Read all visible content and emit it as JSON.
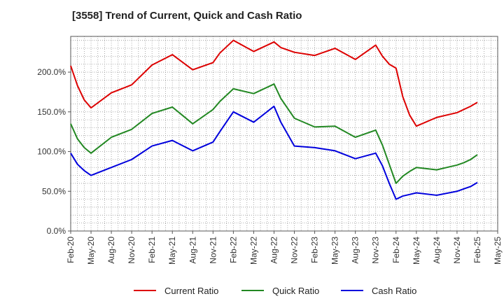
{
  "chart_data": {
    "type": "line",
    "title": "[3558]  Trend of Current, Quick and Cash Ratio",
    "xlabel": "",
    "ylabel": "",
    "ylim": [
      0,
      245
    ],
    "y_ticks": [
      0,
      50,
      100,
      150,
      200
    ],
    "y_tick_labels": [
      "0.0%",
      "50.0%",
      "100.0%",
      "150.0%",
      "200.0%"
    ],
    "grid": true,
    "legend_position": "bottom",
    "x_tick_labels": [
      "Feb-20",
      "May-20",
      "Aug-20",
      "Nov-20",
      "Feb-21",
      "May-21",
      "Aug-21",
      "Nov-21",
      "Feb-22",
      "May-22",
      "Aug-22",
      "Nov-22",
      "Feb-23",
      "May-23",
      "Aug-23",
      "Nov-23",
      "Feb-24",
      "May-24",
      "Aug-24",
      "Nov-24",
      "Feb-25",
      "May-25"
    ],
    "x_months": [
      "Feb-20",
      "Mar-20",
      "Apr-20",
      "May-20",
      "Aug-20",
      "Nov-20",
      "Feb-21",
      "May-21",
      "Aug-21",
      "Nov-21",
      "Dec-21",
      "Feb-22",
      "May-22",
      "Aug-22",
      "Sep-22",
      "Nov-22",
      "Feb-23",
      "May-23",
      "Aug-23",
      "Nov-23",
      "Dec-23",
      "Jan-24",
      "Feb-24",
      "Mar-24",
      "Apr-24",
      "May-24",
      "Aug-24",
      "Nov-24",
      "Dec-24",
      "Jan-25",
      "Feb-25"
    ],
    "x_index": [
      0,
      1,
      2,
      3,
      6,
      9,
      12,
      15,
      18,
      21,
      22,
      24,
      27,
      30,
      31,
      33,
      36,
      39,
      42,
      45,
      46,
      47,
      48,
      49,
      50,
      51,
      54,
      57,
      58,
      59,
      60
    ],
    "series": [
      {
        "name": "Current Ratio",
        "color": "#dd0000",
        "values": [
          208,
          183,
          165,
          155,
          174,
          184,
          209,
          222,
          203,
          212,
          224,
          240,
          226,
          238,
          231,
          225,
          221,
          230,
          216,
          234,
          220,
          210,
          205,
          169,
          146,
          132,
          143,
          149,
          153,
          157,
          162
        ]
      },
      {
        "name": "Quick Ratio",
        "color": "#228822",
        "values": [
          135,
          116,
          105,
          98,
          118,
          128,
          148,
          156,
          135,
          153,
          163,
          179,
          173,
          185,
          167,
          142,
          131,
          132,
          118,
          127,
          108,
          84,
          60,
          69,
          75,
          80,
          77,
          83,
          86,
          90,
          96
        ]
      },
      {
        "name": "Cash Ratio",
        "color": "#0000dd",
        "values": [
          98,
          84,
          76,
          70,
          80,
          90,
          107,
          114,
          101,
          112,
          125,
          150,
          137,
          157,
          137,
          107,
          105,
          101,
          91,
          98,
          82,
          60,
          40,
          44,
          46,
          48,
          45,
          50,
          53,
          56,
          61
        ]
      }
    ]
  }
}
